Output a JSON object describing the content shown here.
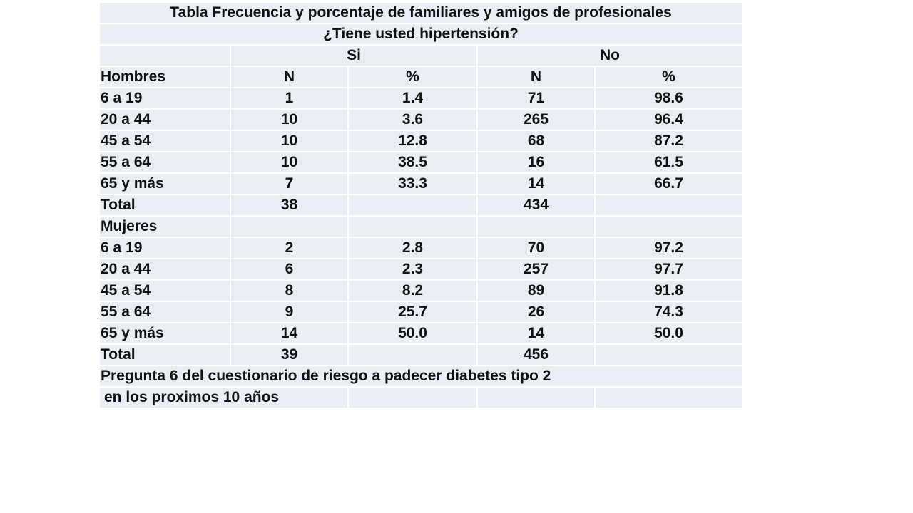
{
  "table": {
    "title": "Tabla   Frecuencia y porcentaje de familiares y amigos de profesionales",
    "question": "¿Tiene usted hipertensión?",
    "group_headers": {
      "blank": "",
      "si": "Si",
      "no": "No"
    },
    "columns": [
      "Hombres",
      "N",
      "%",
      "N",
      "%"
    ],
    "men_rows": [
      [
        "6 a 19",
        "1",
        "1.4",
        "71",
        "98.6"
      ],
      [
        "20 a 44",
        "10",
        "3.6",
        "265",
        "96.4"
      ],
      [
        "45 a 54",
        "10",
        "12.8",
        "68",
        "87.2"
      ],
      [
        "55 a 64",
        "10",
        "38.5",
        "16",
        "61.5"
      ],
      [
        "65 y más",
        "7",
        "33.3",
        "14",
        "66.7"
      ],
      [
        "Total",
        "38",
        "",
        "434",
        ""
      ]
    ],
    "women_label": "Mujeres",
    "women_rows": [
      [
        "6 a 19",
        "2",
        "2.8",
        "70",
        "97.2"
      ],
      [
        "20 a 44",
        "6",
        "2.3",
        "257",
        "97.7"
      ],
      [
        "45 a 54",
        "8",
        "8.2",
        "89",
        "91.8"
      ],
      [
        "55 a 64",
        "9",
        "25.7",
        "26",
        "74.3"
      ],
      [
        "65 y más",
        "14",
        "50.0",
        "14",
        "50.0"
      ],
      [
        "Total",
        "39",
        "",
        "456",
        ""
      ]
    ],
    "footnote_line1": "Pregunta 6 del cuestionario de riesgo a padecer diabetes tipo 2",
    "footnote_line2": "en los proximos 10 años"
  }
}
